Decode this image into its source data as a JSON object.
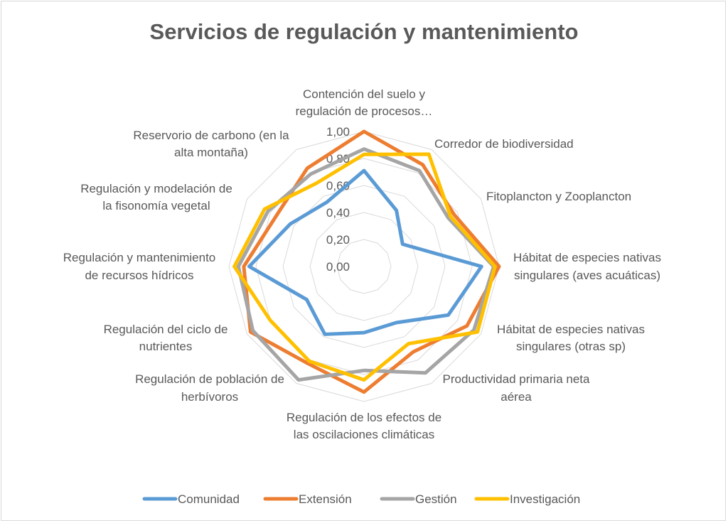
{
  "chart_data": {
    "type": "radar",
    "title": "Servicios de regulación y mantenimiento",
    "categories": [
      [
        "Contención del suelo y",
        "regulación de procesos…"
      ],
      [
        "Corredor de biodiversidad"
      ],
      [
        "Fitoplancton y Zooplancton"
      ],
      [
        "Hábitat   de especies nativas",
        "singulares (aves acuáticas)"
      ],
      [
        "Hábitat de especies nativas",
        "singulares (otras sp)"
      ],
      [
        "Productividad primaria neta",
        "aérea"
      ],
      [
        "Regulación de los efectos de",
        "las oscilaciones climáticas"
      ],
      [
        "Regulación de población de",
        "herbívoros"
      ],
      [
        "Regulación del ciclo de",
        "nutrientes"
      ],
      [
        "Regulación y mantenimiento",
        "de recursos hídricos"
      ],
      [
        "Regulación y modelación de",
        "la fisonomía vegetal"
      ],
      [
        "Reservorio de carbono (en la",
        "alta montaña)"
      ]
    ],
    "rlim": [
      0,
      1
    ],
    "ticks": [
      "0,00",
      "0,20",
      "0,40",
      "0,60",
      "0,80",
      "1,00"
    ],
    "grid": true,
    "legend_position": "bottom",
    "series": [
      {
        "name": "Comunidad",
        "color": "#5b9bd5",
        "values": [
          0.71,
          0.48,
          0.33,
          0.87,
          0.72,
          0.48,
          0.49,
          0.58,
          0.49,
          0.85,
          0.63,
          0.55
        ]
      },
      {
        "name": "Extensión",
        "color": "#ed7d31",
        "values": [
          1.0,
          0.87,
          0.77,
          1.0,
          0.88,
          0.73,
          0.93,
          0.83,
          0.97,
          0.89,
          0.75,
          0.84
        ]
      },
      {
        "name": "Gestión",
        "color": "#a5a5a5",
        "values": [
          0.87,
          0.82,
          0.72,
          0.96,
          0.94,
          0.91,
          0.77,
          0.97,
          0.95,
          0.93,
          0.82,
          0.79
        ]
      },
      {
        "name": "Investigación",
        "color": "#ffc000",
        "values": [
          0.83,
          0.96,
          0.74,
          0.97,
          0.97,
          0.66,
          0.84,
          0.81,
          0.8,
          0.96,
          0.85,
          0.71
        ]
      }
    ]
  }
}
